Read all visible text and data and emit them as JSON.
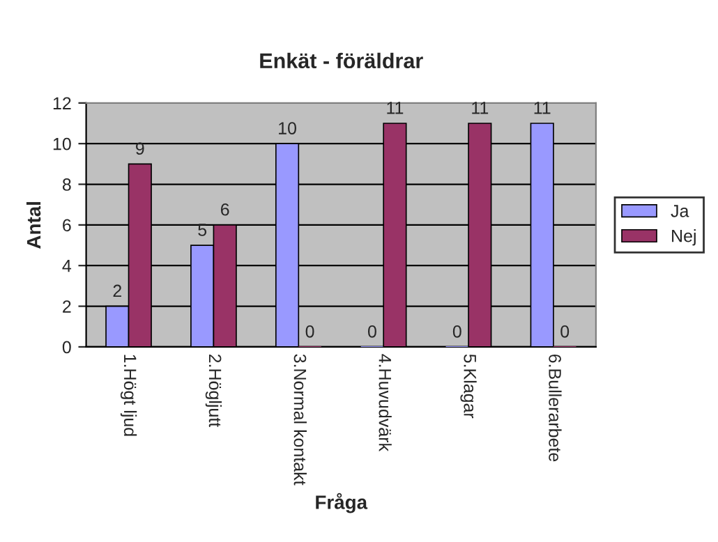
{
  "chart_data": {
    "type": "bar",
    "title": "Enkät - föräldrar",
    "xlabel": "Fråga",
    "ylabel": "Antal",
    "categories": [
      "1.Högt ljud",
      "2.Högljutt",
      "3.Normal kontakt",
      "4.Huvudvärk",
      "5.Klagar",
      "6.Bullerarbete"
    ],
    "series": [
      {
        "name": "Ja",
        "color": "#9999ff",
        "values": [
          2,
          5,
          10,
          0,
          0,
          11
        ]
      },
      {
        "name": "Nej",
        "color": "#993366",
        "values": [
          9,
          6,
          0,
          11,
          11,
          0
        ]
      }
    ],
    "ylim": [
      0,
      12
    ],
    "yticks": [
      0,
      2,
      4,
      6,
      8,
      10,
      12
    ],
    "grid": "y",
    "legend": "right",
    "data_labels": true
  }
}
